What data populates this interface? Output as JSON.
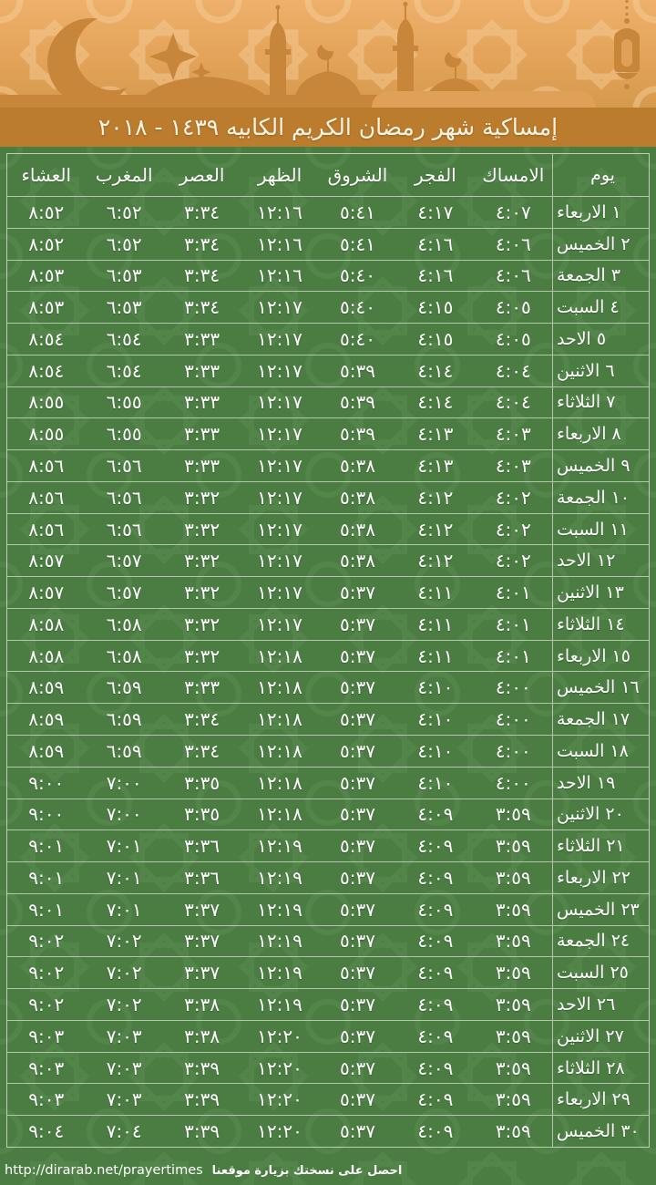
{
  "title": "إمساكية شهر رمضان الكريم الكابيه ١٤٣٩ - ٢٠١٨",
  "table": {
    "headers": [
      "يوم",
      "الامساك",
      "الفجر",
      "الشروق",
      "الظهر",
      "العصر",
      "المغرب",
      "العشاء"
    ],
    "rows": [
      {
        "day": "١ الاربعاء",
        "imsak": "٤:٠٧",
        "fajr": "٤:١٧",
        "shuruq": "٥:٤١",
        "dhuhr": "١٢:١٦",
        "asr": "٣:٣٤",
        "maghrib": "٦:٥٢",
        "isha": "٨:٥٢"
      },
      {
        "day": "٢ الخميس",
        "imsak": "٤:٠٦",
        "fajr": "٤:١٦",
        "shuruq": "٥:٤١",
        "dhuhr": "١٢:١٦",
        "asr": "٣:٣٤",
        "maghrib": "٦:٥٢",
        "isha": "٨:٥٢"
      },
      {
        "day": "٣ الجمعة",
        "imsak": "٤:٠٦",
        "fajr": "٤:١٦",
        "shuruq": "٥:٤٠",
        "dhuhr": "١٢:١٦",
        "asr": "٣:٣٤",
        "maghrib": "٦:٥٣",
        "isha": "٨:٥٣"
      },
      {
        "day": "٤ السبت",
        "imsak": "٤:٠٥",
        "fajr": "٤:١٥",
        "shuruq": "٥:٤٠",
        "dhuhr": "١٢:١٧",
        "asr": "٣:٣٤",
        "maghrib": "٦:٥٣",
        "isha": "٨:٥٣"
      },
      {
        "day": "٥ الاحد",
        "imsak": "٤:٠٥",
        "fajr": "٤:١٥",
        "shuruq": "٥:٤٠",
        "dhuhr": "١٢:١٧",
        "asr": "٣:٣٣",
        "maghrib": "٦:٥٤",
        "isha": "٨:٥٤"
      },
      {
        "day": "٦ الاثنين",
        "imsak": "٤:٠٤",
        "fajr": "٤:١٤",
        "shuruq": "٥:٣٩",
        "dhuhr": "١٢:١٧",
        "asr": "٣:٣٣",
        "maghrib": "٦:٥٤",
        "isha": "٨:٥٤"
      },
      {
        "day": "٧ الثلاثاء",
        "imsak": "٤:٠٤",
        "fajr": "٤:١٤",
        "shuruq": "٥:٣٩",
        "dhuhr": "١٢:١٧",
        "asr": "٣:٣٣",
        "maghrib": "٦:٥٥",
        "isha": "٨:٥٥"
      },
      {
        "day": "٨ الاربعاء",
        "imsak": "٤:٠٣",
        "fajr": "٤:١٣",
        "shuruq": "٥:٣٩",
        "dhuhr": "١٢:١٧",
        "asr": "٣:٣٣",
        "maghrib": "٦:٥٥",
        "isha": "٨:٥٥"
      },
      {
        "day": "٩ الخميس",
        "imsak": "٤:٠٣",
        "fajr": "٤:١٣",
        "shuruq": "٥:٣٨",
        "dhuhr": "١٢:١٧",
        "asr": "٣:٣٣",
        "maghrib": "٦:٥٦",
        "isha": "٨:٥٦"
      },
      {
        "day": "١٠ الجمعة",
        "imsak": "٤:٠٢",
        "fajr": "٤:١٢",
        "shuruq": "٥:٣٨",
        "dhuhr": "١٢:١٧",
        "asr": "٣:٣٢",
        "maghrib": "٦:٥٦",
        "isha": "٨:٥٦"
      },
      {
        "day": "١١ السبت",
        "imsak": "٤:٠٢",
        "fajr": "٤:١٢",
        "shuruq": "٥:٣٨",
        "dhuhr": "١٢:١٧",
        "asr": "٣:٣٢",
        "maghrib": "٦:٥٦",
        "isha": "٨:٥٦"
      },
      {
        "day": "١٢ الاحد",
        "imsak": "٤:٠٢",
        "fajr": "٤:١٢",
        "shuruq": "٥:٣٨",
        "dhuhr": "١٢:١٧",
        "asr": "٣:٣٢",
        "maghrib": "٦:٥٧",
        "isha": "٨:٥٧"
      },
      {
        "day": "١٣ الاثنين",
        "imsak": "٤:٠١",
        "fajr": "٤:١١",
        "shuruq": "٥:٣٧",
        "dhuhr": "١٢:١٧",
        "asr": "٣:٣٢",
        "maghrib": "٦:٥٧",
        "isha": "٨:٥٧"
      },
      {
        "day": "١٤ الثلاثاء",
        "imsak": "٤:٠١",
        "fajr": "٤:١١",
        "shuruq": "٥:٣٧",
        "dhuhr": "١٢:١٧",
        "asr": "٣:٣٢",
        "maghrib": "٦:٥٨",
        "isha": "٨:٥٨"
      },
      {
        "day": "١٥ الاربعاء",
        "imsak": "٤:٠١",
        "fajr": "٤:١١",
        "shuruq": "٥:٣٧",
        "dhuhr": "١٢:١٨",
        "asr": "٣:٣٢",
        "maghrib": "٦:٥٨",
        "isha": "٨:٥٨"
      },
      {
        "day": "١٦ الخميس",
        "imsak": "٤:٠٠",
        "fajr": "٤:١٠",
        "shuruq": "٥:٣٧",
        "dhuhr": "١٢:١٨",
        "asr": "٣:٣٣",
        "maghrib": "٦:٥٩",
        "isha": "٨:٥٩"
      },
      {
        "day": "١٧ الجمعة",
        "imsak": "٤:٠٠",
        "fajr": "٤:١٠",
        "shuruq": "٥:٣٧",
        "dhuhr": "١٢:١٨",
        "asr": "٣:٣٤",
        "maghrib": "٦:٥٩",
        "isha": "٨:٥٩"
      },
      {
        "day": "١٨ السبت",
        "imsak": "٤:٠٠",
        "fajr": "٤:١٠",
        "shuruq": "٥:٣٧",
        "dhuhr": "١٢:١٨",
        "asr": "٣:٣٤",
        "maghrib": "٦:٥٩",
        "isha": "٨:٥٩"
      },
      {
        "day": "١٩ الاحد",
        "imsak": "٤:٠٠",
        "fajr": "٤:١٠",
        "shuruq": "٥:٣٧",
        "dhuhr": "١٢:١٨",
        "asr": "٣:٣٥",
        "maghrib": "٧:٠٠",
        "isha": "٩:٠٠"
      },
      {
        "day": "٢٠ الاثنين",
        "imsak": "٣:٥٩",
        "fajr": "٤:٠٩",
        "shuruq": "٥:٣٧",
        "dhuhr": "١٢:١٨",
        "asr": "٣:٣٥",
        "maghrib": "٧:٠٠",
        "isha": "٩:٠٠"
      },
      {
        "day": "٢١ الثلاثاء",
        "imsak": "٣:٥٩",
        "fajr": "٤:٠٩",
        "shuruq": "٥:٣٧",
        "dhuhr": "١٢:١٩",
        "asr": "٣:٣٦",
        "maghrib": "٧:٠١",
        "isha": "٩:٠١"
      },
      {
        "day": "٢٢ الاربعاء",
        "imsak": "٣:٥٩",
        "fajr": "٤:٠٩",
        "shuruq": "٥:٣٧",
        "dhuhr": "١٢:١٩",
        "asr": "٣:٣٦",
        "maghrib": "٧:٠١",
        "isha": "٩:٠١"
      },
      {
        "day": "٢٣ الخميس",
        "imsak": "٣:٥٩",
        "fajr": "٤:٠٩",
        "shuruq": "٥:٣٧",
        "dhuhr": "١٢:١٩",
        "asr": "٣:٣٧",
        "maghrib": "٧:٠١",
        "isha": "٩:٠١"
      },
      {
        "day": "٢٤ الجمعة",
        "imsak": "٣:٥٩",
        "fajr": "٤:٠٩",
        "shuruq": "٥:٣٧",
        "dhuhr": "١٢:١٩",
        "asr": "٣:٣٧",
        "maghrib": "٧:٠٢",
        "isha": "٩:٠٢"
      },
      {
        "day": "٢٥ السبت",
        "imsak": "٣:٥٩",
        "fajr": "٤:٠٩",
        "shuruq": "٥:٣٧",
        "dhuhr": "١٢:١٩",
        "asr": "٣:٣٧",
        "maghrib": "٧:٠٢",
        "isha": "٩:٠٢"
      },
      {
        "day": "٢٦ الاحد",
        "imsak": "٣:٥٩",
        "fajr": "٤:٠٩",
        "shuruq": "٥:٣٧",
        "dhuhr": "١٢:١٩",
        "asr": "٣:٣٨",
        "maghrib": "٧:٠٢",
        "isha": "٩:٠٢"
      },
      {
        "day": "٢٧ الاثنين",
        "imsak": "٣:٥٩",
        "fajr": "٤:٠٩",
        "shuruq": "٥:٣٧",
        "dhuhr": "١٢:٢٠",
        "asr": "٣:٣٨",
        "maghrib": "٧:٠٣",
        "isha": "٩:٠٣"
      },
      {
        "day": "٢٨ الثلاثاء",
        "imsak": "٣:٥٩",
        "fajr": "٤:٠٩",
        "shuruq": "٥:٣٧",
        "dhuhr": "١٢:٢٠",
        "asr": "٣:٣٩",
        "maghrib": "٧:٠٣",
        "isha": "٩:٠٣"
      },
      {
        "day": "٢٩ الاربعاء",
        "imsak": "٣:٥٩",
        "fajr": "٤:٠٩",
        "shuruq": "٥:٣٧",
        "dhuhr": "١٢:٢٠",
        "asr": "٣:٣٩",
        "maghrib": "٧:٠٣",
        "isha": "٩:٠٣"
      },
      {
        "day": "٣٠ الخميس",
        "imsak": "٣:٥٩",
        "fajr": "٤:٠٩",
        "shuruq": "٥:٣٧",
        "dhuhr": "١٢:٢٠",
        "asr": "٣:٣٩",
        "maghrib": "٧:٠٤",
        "isha": "٩:٠٤"
      }
    ]
  },
  "footer": {
    "url": "http://dirarab.net/prayertimes",
    "note": "احصل على نسختك بزيارة موقعنا"
  },
  "icons": {
    "banner_left": "crescent-moon-with-stars",
    "banner_center": "mosque-silhouette",
    "banner_right": "hanging-lantern"
  },
  "colors": {
    "banner_orange": "#e3a358",
    "silhouette_orange": "#c8863b",
    "titlebar_orange": "#bc7c2e",
    "title_text": "#fdf5e3",
    "table_green": "#4b7d43",
    "row_border": "#dee5d4",
    "cell_text": "#ffffff"
  }
}
